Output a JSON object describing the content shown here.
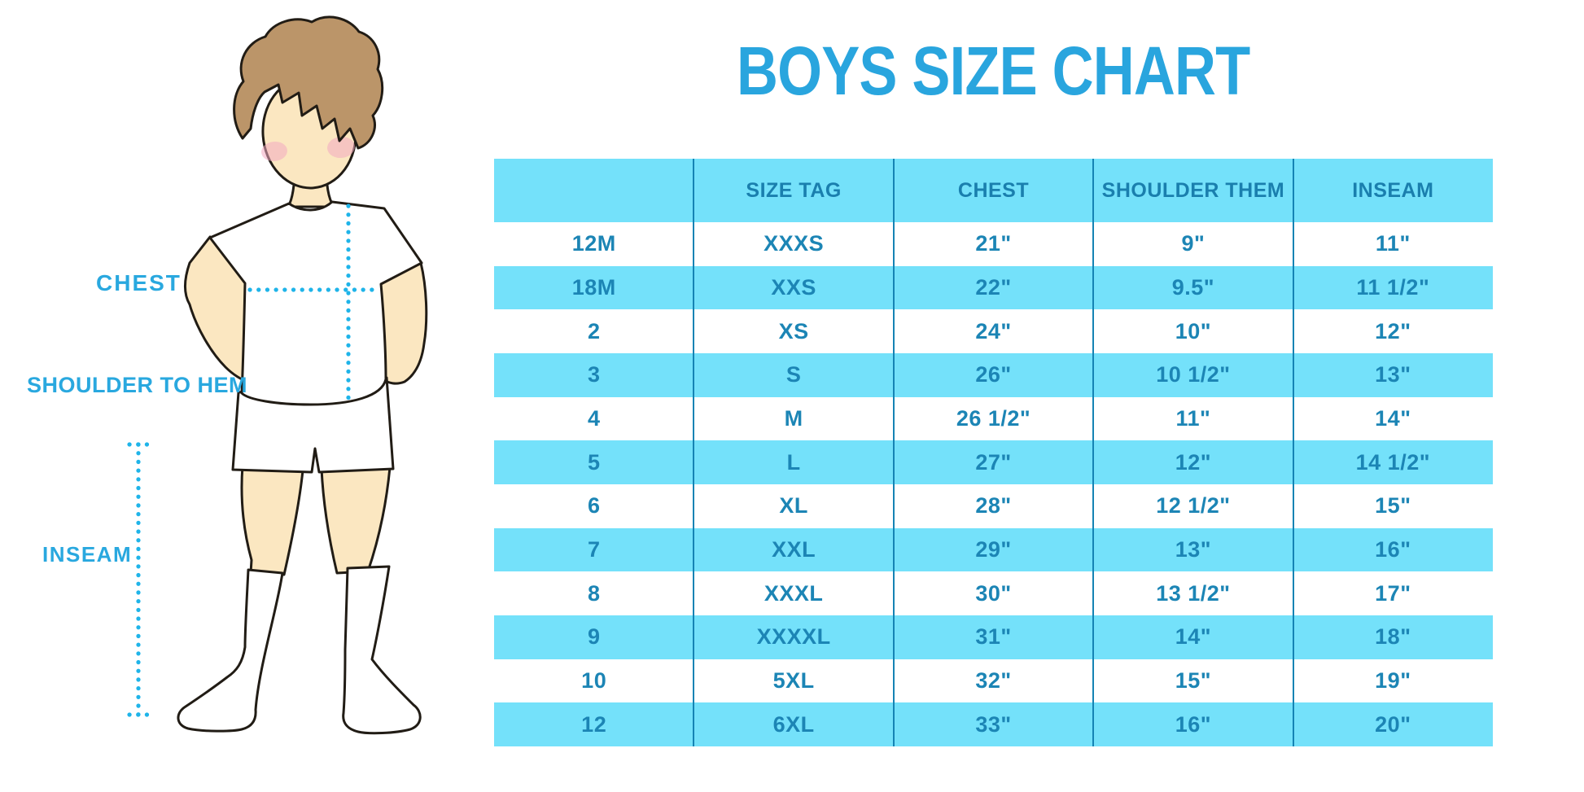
{
  "title": "BOYS SIZE CHART",
  "colors": {
    "title_blue": "#29a5de",
    "label_blue": "#29a8df",
    "dotted_line_cyan": "#1fb4e9",
    "band_cyan": "#74e1fa",
    "divider_blue": "#1583b4",
    "table_text_blue": "#1c85b5",
    "skin": "#fbe7c1",
    "hair": "#bb9569",
    "blush": "#f3a9c1",
    "outline": "#211c15"
  },
  "figure": {
    "labels": {
      "chest": "CHEST",
      "shoulder_to_hem": "SHOULDER TO HEM",
      "inseam": "INSEAM"
    }
  },
  "table": {
    "headers": [
      "",
      "SIZE TAG",
      "CHEST",
      "SHOULDER THEM",
      "INSEAM"
    ],
    "rows": [
      [
        "12M",
        "XXXS",
        "21\"",
        "9\"",
        "11\""
      ],
      [
        "18M",
        "XXS",
        "22\"",
        "9.5\"",
        "11 1/2\""
      ],
      [
        "2",
        "XS",
        "24\"",
        "10\"",
        "12\""
      ],
      [
        "3",
        "S",
        "26\"",
        "10 1/2\"",
        "13\""
      ],
      [
        "4",
        "M",
        "26 1/2\"",
        "11\"",
        "14\""
      ],
      [
        "5",
        "L",
        "27\"",
        "12\"",
        "14 1/2\""
      ],
      [
        "6",
        "XL",
        "28\"",
        "12 1/2\"",
        "15\""
      ],
      [
        "7",
        "XXL",
        "29\"",
        "13\"",
        "16\""
      ],
      [
        "8",
        "XXXL",
        "30\"",
        "13 1/2\"",
        "17\""
      ],
      [
        "9",
        "XXXXL",
        "31\"",
        "14\"",
        "18\""
      ],
      [
        "10",
        "5XL",
        "32\"",
        "15\"",
        "19\""
      ],
      [
        "12",
        "6XL",
        "33\"",
        "16\"",
        "20\""
      ]
    ]
  }
}
